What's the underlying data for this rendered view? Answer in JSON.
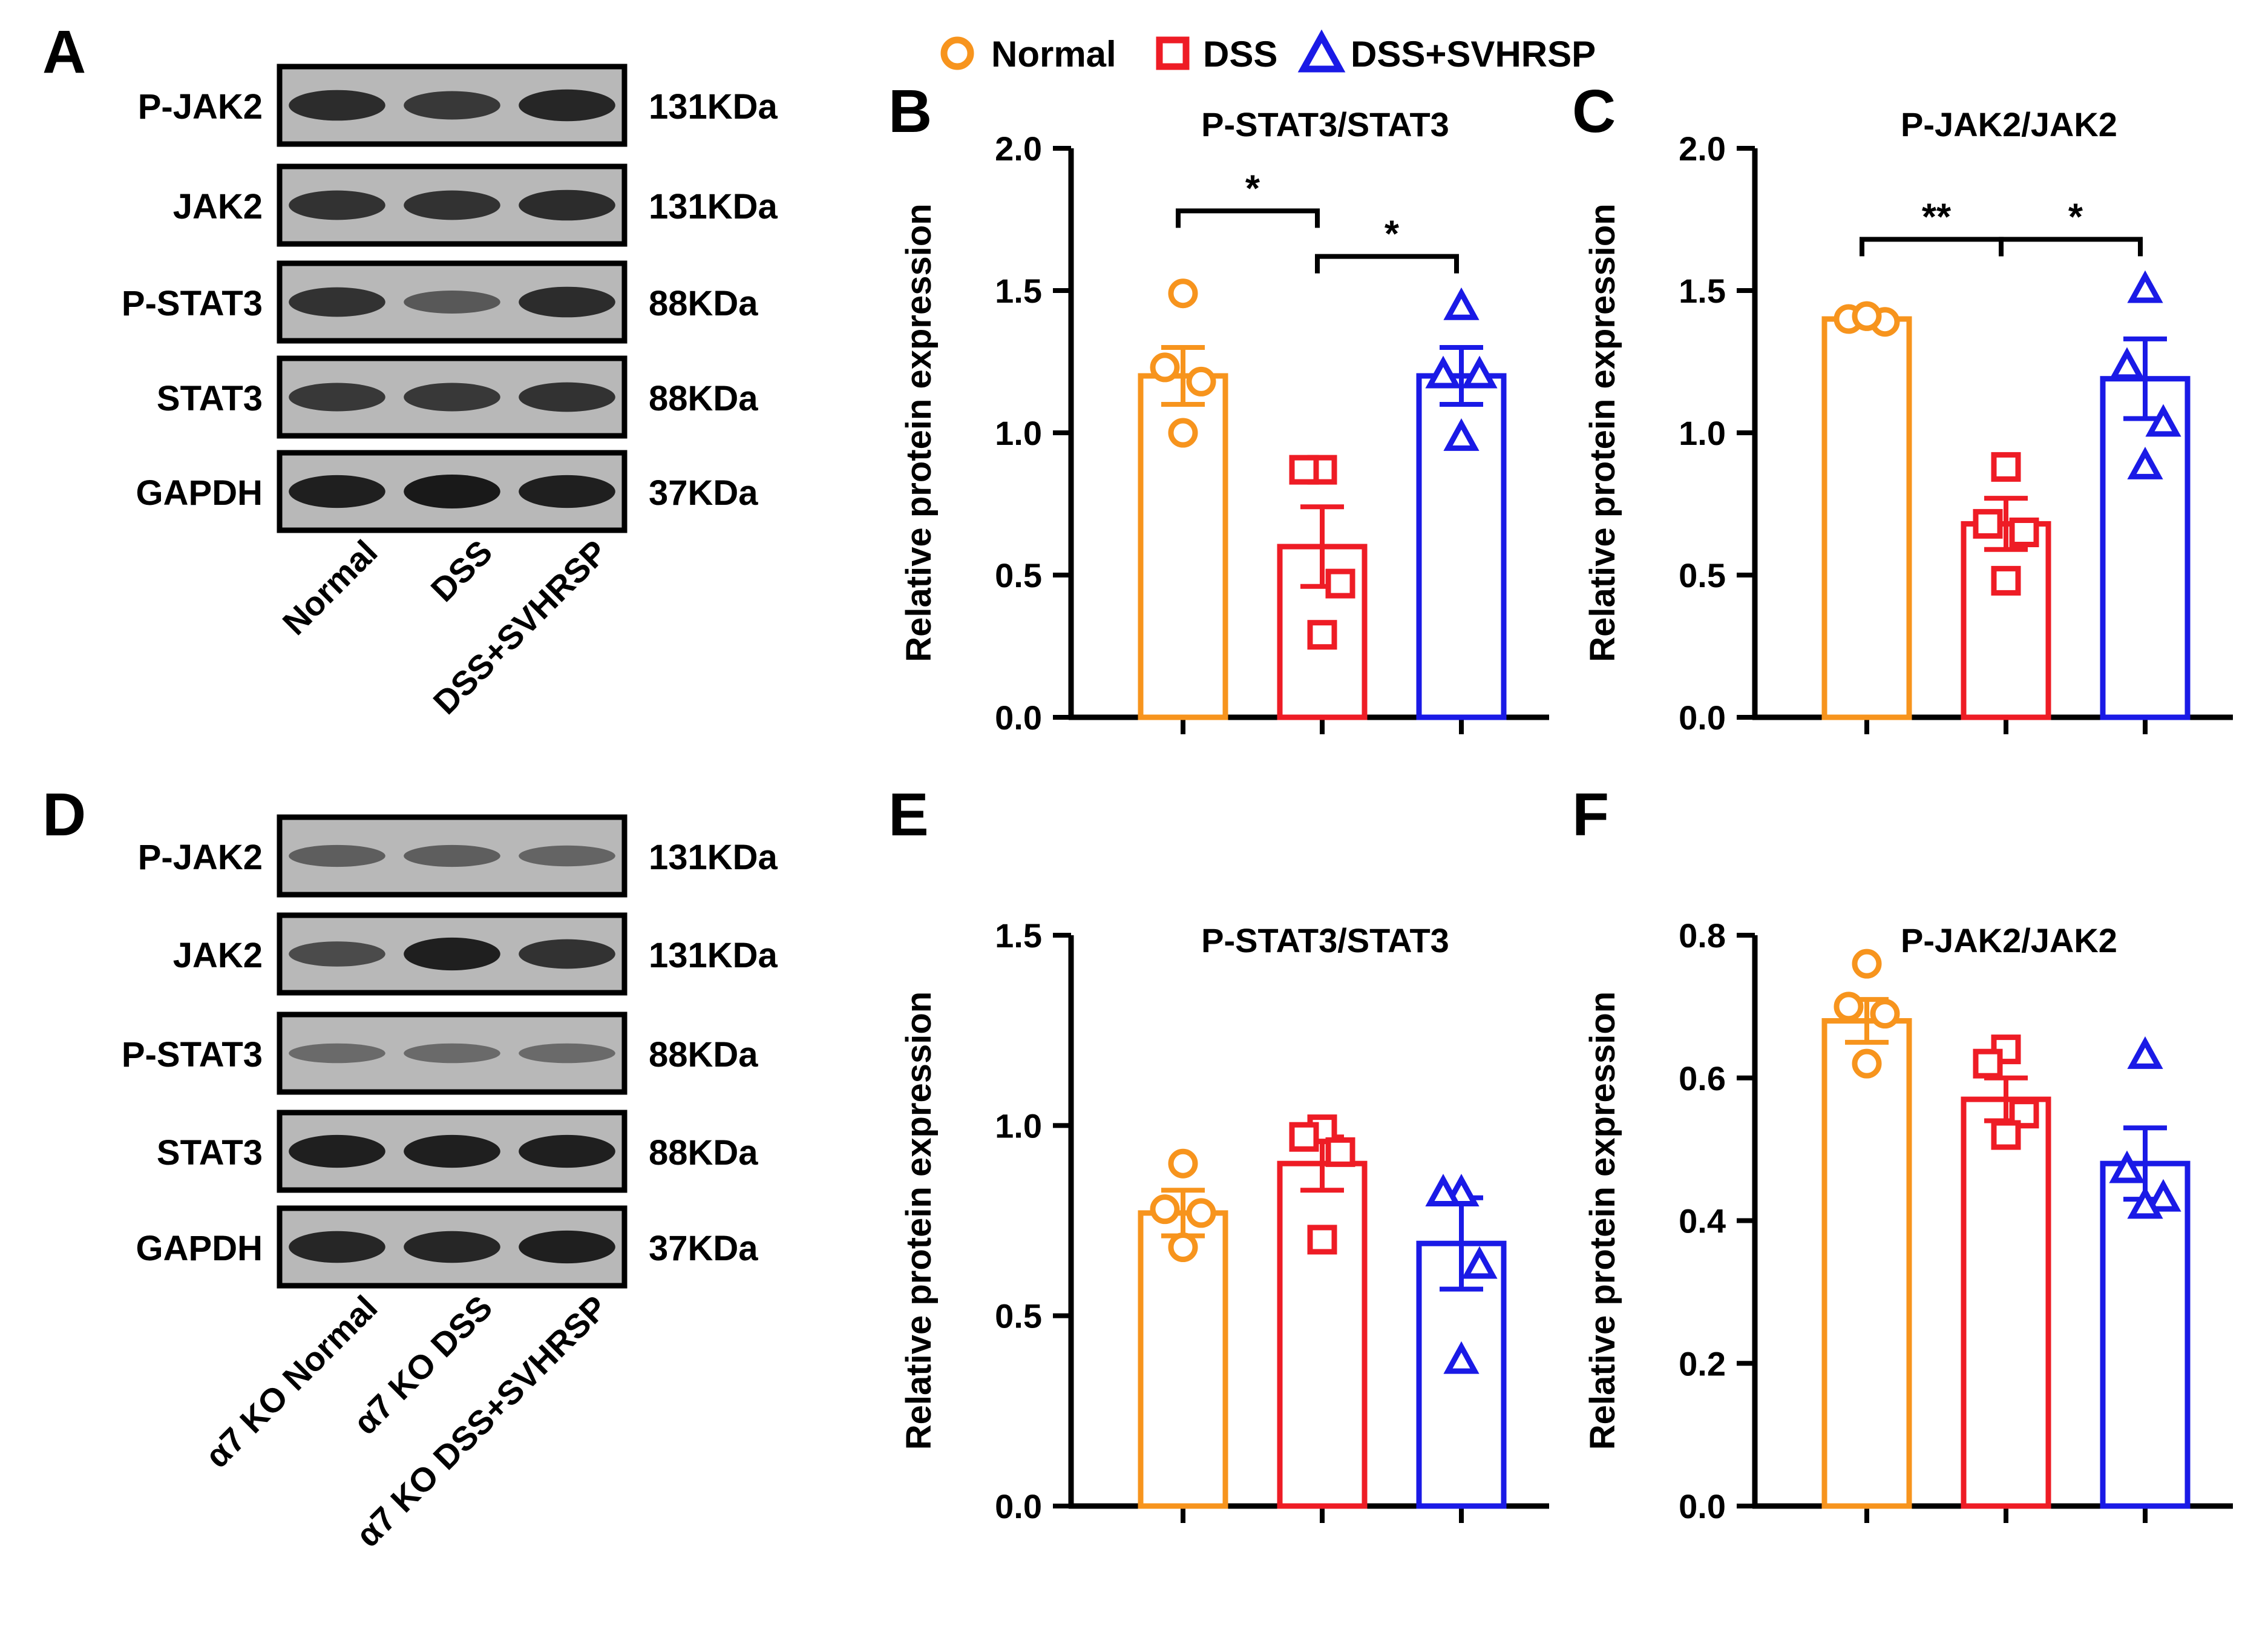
{
  "legend": [
    {
      "label": "Normal",
      "color": "#F7941D",
      "marker": "circle"
    },
    {
      "label": "DSS",
      "color": "#EE1C25",
      "marker": "square"
    },
    {
      "label": "DSS+SVHRSP",
      "color": "#1A1AE6",
      "marker": "triangle"
    }
  ],
  "colors": {
    "normal": "#F7941D",
    "dss": "#EE1C25",
    "svhrsp": "#1A1AE6"
  },
  "blots": [
    {
      "panel": "A",
      "rows": [
        {
          "name": "P-JAK2",
          "kda": "131KDa",
          "intensity": [
            0.85,
            0.75,
            0.9
          ]
        },
        {
          "name": "JAK2",
          "kda": "131KDa",
          "intensity": [
            0.8,
            0.8,
            0.85
          ]
        },
        {
          "name": "P-STAT3",
          "kda": "88KDa",
          "intensity": [
            0.8,
            0.5,
            0.85
          ]
        },
        {
          "name": "STAT3",
          "kda": "88KDa",
          "intensity": [
            0.75,
            0.75,
            0.8
          ]
        },
        {
          "name": "GAPDH",
          "kda": "37KDa",
          "intensity": [
            0.95,
            1.0,
            0.95
          ]
        }
      ],
      "lanes": [
        "Normal",
        "DSS",
        "DSS+SVHRSP"
      ]
    },
    {
      "panel": "D",
      "rows": [
        {
          "name": "P-JAK2",
          "kda": "131KDa",
          "intensity": [
            0.45,
            0.45,
            0.4
          ]
        },
        {
          "name": "JAK2",
          "kda": "131KDa",
          "intensity": [
            0.6,
            0.95,
            0.8
          ]
        },
        {
          "name": "P-STAT3",
          "kda": "88KDa",
          "intensity": [
            0.35,
            0.35,
            0.35
          ]
        },
        {
          "name": "STAT3",
          "kda": "88KDa",
          "intensity": [
            0.95,
            0.95,
            0.95
          ]
        },
        {
          "name": "GAPDH",
          "kda": "37KDa",
          "intensity": [
            0.9,
            0.9,
            0.95
          ]
        }
      ],
      "lanes": [
        "α7 KO Normal",
        "α7 KO DSS",
        "α7 KO DSS+SVHRSP"
      ]
    }
  ],
  "chart_data": [
    {
      "panel": "B",
      "type": "bar",
      "title": "P-STAT3/STAT3",
      "ylabel": "Relative protein expression",
      "ylim": [
        0,
        2.0
      ],
      "yticks": [
        "0.0",
        "0.5",
        "1.0",
        "1.5",
        "2.0"
      ],
      "series": [
        {
          "name": "Normal",
          "mean": 1.2,
          "sem": 0.1,
          "points": [
            1.49,
            1.23,
            1.18,
            1.0
          ]
        },
        {
          "name": "DSS",
          "mean": 0.6,
          "sem": 0.14,
          "points": [
            0.87,
            0.87,
            0.47,
            0.29
          ]
        },
        {
          "name": "DSS+SVHRSP",
          "mean": 1.2,
          "sem": 0.1,
          "points": [
            1.44,
            1.2,
            1.2,
            0.98
          ]
        }
      ],
      "significance": [
        {
          "from": 0,
          "to": 1,
          "label": "*",
          "y": 1.78
        },
        {
          "from": 1,
          "to": 2,
          "label": "*",
          "y": 1.62
        }
      ]
    },
    {
      "panel": "C",
      "type": "bar",
      "title": "P-JAK2/JAK2",
      "ylabel": "Relative protein expression",
      "ylim": [
        0,
        2.0
      ],
      "yticks": [
        "0.0",
        "0.5",
        "1.0",
        "1.5",
        "2.0"
      ],
      "series": [
        {
          "name": "Normal",
          "mean": 1.4,
          "sem": 0.02,
          "points": [
            1.41,
            1.4,
            1.39,
            1.41
          ]
        },
        {
          "name": "DSS",
          "mean": 0.68,
          "sem": 0.09,
          "points": [
            0.88,
            0.68,
            0.65,
            0.48
          ]
        },
        {
          "name": "DSS+SVHRSP",
          "mean": 1.19,
          "sem": 0.14,
          "points": [
            1.5,
            1.23,
            1.03,
            0.88
          ]
        }
      ],
      "significance": [
        {
          "from": 0,
          "to": 1,
          "label": "**",
          "y": 1.68
        },
        {
          "from": 1,
          "to": 2,
          "label": "*",
          "y": 1.68
        }
      ]
    },
    {
      "panel": "E",
      "type": "bar",
      "title": "P-STAT3/STAT3",
      "ylabel": "Relative protein expression",
      "ylim": [
        0,
        1.5
      ],
      "yticks": [
        "0.0",
        "0.5",
        "1.0",
        "1.5"
      ],
      "series": [
        {
          "name": "Normal",
          "mean": 0.77,
          "sem": 0.06,
          "points": [
            0.9,
            0.78,
            0.77,
            0.68
          ]
        },
        {
          "name": "DSS",
          "mean": 0.9,
          "sem": 0.07,
          "points": [
            0.99,
            0.97,
            0.93,
            0.7
          ]
        },
        {
          "name": "DSS+SVHRSP",
          "mean": 0.69,
          "sem": 0.12,
          "points": [
            0.82,
            0.82,
            0.63,
            0.38
          ]
        }
      ],
      "significance": []
    },
    {
      "panel": "F",
      "type": "bar",
      "title": "P-JAK2/JAK2",
      "ylabel": "Relative protein expression",
      "ylim": [
        0,
        0.8
      ],
      "yticks": [
        "0.0",
        "0.2",
        "0.4",
        "0.6",
        "0.8"
      ],
      "series": [
        {
          "name": "Normal",
          "mean": 0.68,
          "sem": 0.03,
          "points": [
            0.76,
            0.7,
            0.69,
            0.62
          ]
        },
        {
          "name": "DSS",
          "mean": 0.57,
          "sem": 0.03,
          "points": [
            0.64,
            0.62,
            0.55,
            0.52
          ]
        },
        {
          "name": "DSS+SVHRSP",
          "mean": 0.48,
          "sem": 0.05,
          "points": [
            0.63,
            0.47,
            0.43,
            0.42
          ]
        }
      ],
      "significance": []
    }
  ]
}
